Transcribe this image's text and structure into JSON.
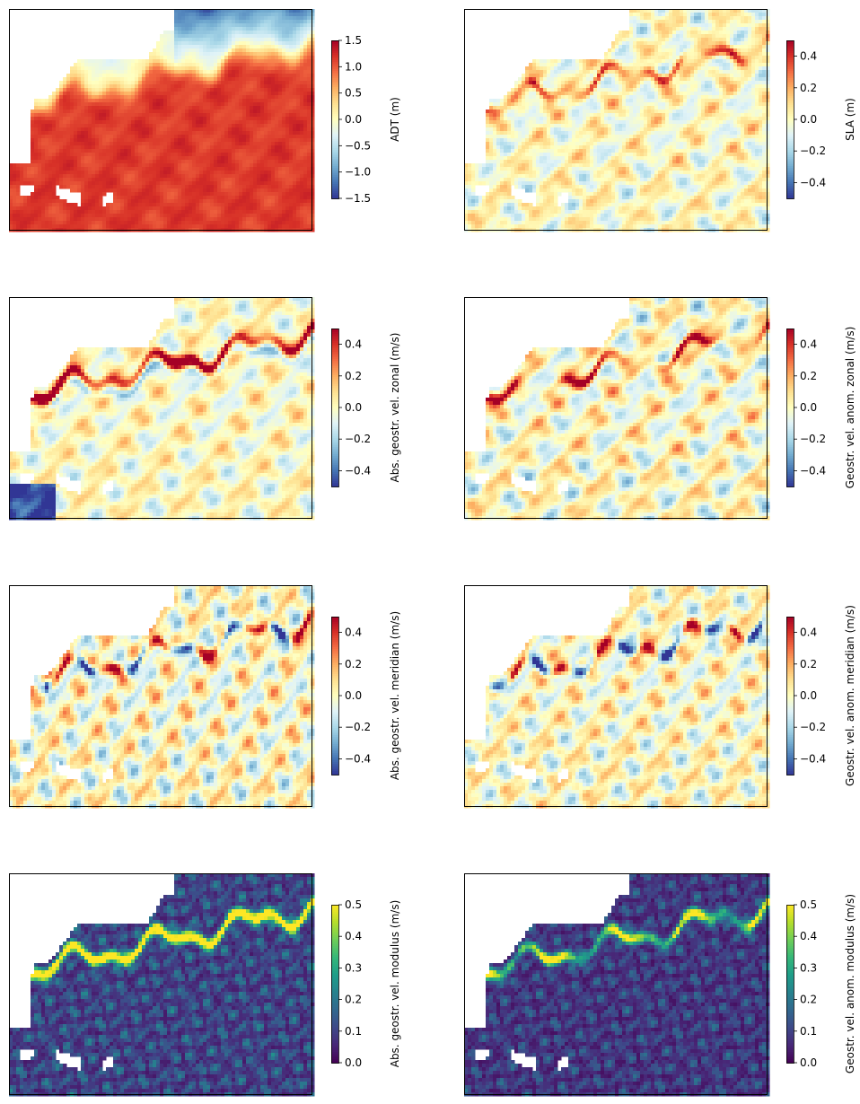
{
  "chart_data": [
    {
      "type": "heatmap",
      "title": "",
      "colormap": "RdYlBu_r",
      "colorbar": {
        "label": "ADT (m)",
        "range": [
          -1.5,
          1.5
        ],
        "ticks": [
          -1.5,
          -1.0,
          -0.5,
          0.0,
          0.5,
          1.0,
          1.5
        ],
        "tick_labels": [
          "−1.5",
          "−1.0",
          "−0.5",
          "0.0",
          "0.5",
          "1.0",
          "1.5"
        ]
      },
      "field_kind": "adt"
    },
    {
      "type": "heatmap",
      "title": "",
      "colormap": "RdYlBu_r",
      "colorbar": {
        "label": "SLA (m)",
        "range": [
          -0.5,
          0.5
        ],
        "ticks": [
          -0.4,
          -0.2,
          0.0,
          0.2,
          0.4
        ],
        "tick_labels": [
          "−0.4",
          "−0.2",
          "0.0",
          "0.2",
          "0.4"
        ]
      },
      "field_kind": "sla"
    },
    {
      "type": "heatmap",
      "title": "",
      "colormap": "RdYlBu_r",
      "colorbar": {
        "label": "Abs. geostr. vel. zonal (m/s)",
        "range": [
          -0.5,
          0.5
        ],
        "ticks": [
          -0.4,
          -0.2,
          0.0,
          0.2,
          0.4
        ],
        "tick_labels": [
          "−0.4",
          "−0.2",
          "0.0",
          "0.2",
          "0.4"
        ]
      },
      "field_kind": "u_abs"
    },
    {
      "type": "heatmap",
      "title": "",
      "colormap": "RdYlBu_r",
      "colorbar": {
        "label": "Geostr. vel. anom. zonal (m/s)",
        "range": [
          -0.5,
          0.5
        ],
        "ticks": [
          -0.4,
          -0.2,
          0.0,
          0.2,
          0.4
        ],
        "tick_labels": [
          "−0.4",
          "−0.2",
          "0.0",
          "0.2",
          "0.4"
        ]
      },
      "field_kind": "u_anom"
    },
    {
      "type": "heatmap",
      "title": "",
      "colormap": "RdYlBu_r",
      "colorbar": {
        "label": "Abs. geostr. vel. meridian (m/s)",
        "range": [
          -0.5,
          0.5
        ],
        "ticks": [
          -0.4,
          -0.2,
          0.0,
          0.2,
          0.4
        ],
        "tick_labels": [
          "−0.4",
          "−0.2",
          "0.0",
          "0.2",
          "0.4"
        ]
      },
      "field_kind": "v_abs"
    },
    {
      "type": "heatmap",
      "title": "",
      "colormap": "RdYlBu_r",
      "colorbar": {
        "label": "Geostr. vel. anom. meridian (m/s)",
        "range": [
          -0.5,
          0.5
        ],
        "ticks": [
          -0.4,
          -0.2,
          0.0,
          0.2,
          0.4
        ],
        "tick_labels": [
          "−0.4",
          "−0.2",
          "0.0",
          "0.2",
          "0.4"
        ]
      },
      "field_kind": "v_anom"
    },
    {
      "type": "heatmap",
      "title": "",
      "colormap": "viridis",
      "colorbar": {
        "label": "Abs. geostr. vel. modulus (m/s)",
        "range": [
          0.0,
          0.5
        ],
        "ticks": [
          0.0,
          0.1,
          0.2,
          0.3,
          0.4,
          0.5
        ],
        "tick_labels": [
          "0.0",
          "0.1",
          "0.2",
          "0.3",
          "0.4",
          "0.5"
        ]
      },
      "field_kind": "speed_abs"
    },
    {
      "type": "heatmap",
      "title": "",
      "colormap": "viridis",
      "colorbar": {
        "label": "Geostr. vel. anom. modulus (m/s)",
        "range": [
          0.0,
          0.5
        ],
        "ticks": [
          0.0,
          0.1,
          0.2,
          0.3,
          0.4,
          0.5
        ],
        "tick_labels": [
          "0.0",
          "0.1",
          "0.2",
          "0.3",
          "0.4",
          "0.5"
        ]
      },
      "field_kind": "speed_anom"
    }
  ]
}
